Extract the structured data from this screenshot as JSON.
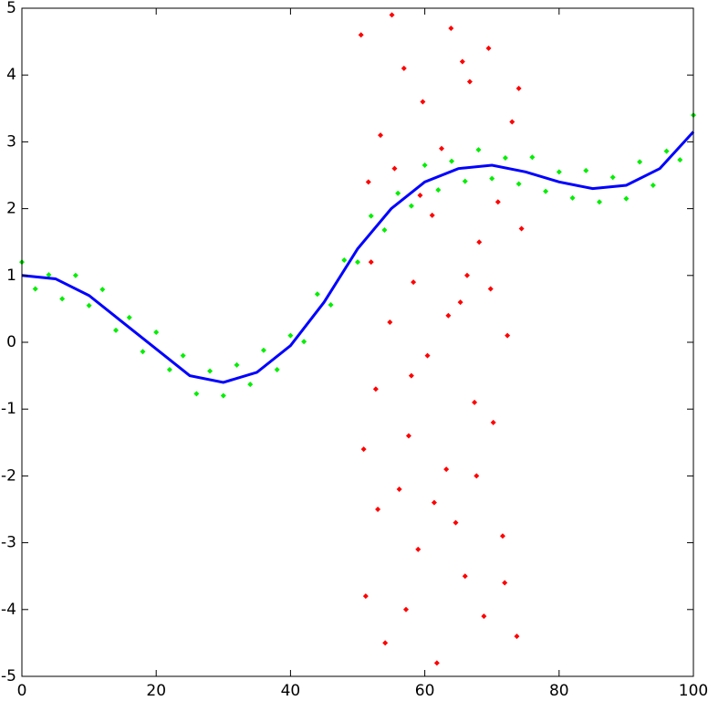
{
  "chart_data": {
    "type": "scatter",
    "xlim": [
      0,
      100
    ],
    "ylim": [
      -5,
      5
    ],
    "xticks": [
      0,
      20,
      40,
      60,
      80,
      100
    ],
    "yticks": [
      -5,
      -4,
      -3,
      -2,
      -1,
      0,
      1,
      2,
      3,
      4,
      5
    ],
    "series": [
      {
        "color": "#00ee00",
        "mode": "markers",
        "x": [
          0,
          2,
          4,
          6,
          8,
          10,
          12,
          14,
          16,
          18,
          20,
          22,
          24,
          26,
          28,
          30,
          32,
          34,
          36,
          38,
          40,
          42,
          44,
          46,
          48,
          50,
          52,
          54,
          56,
          58,
          60,
          62,
          64,
          66,
          68,
          70,
          72,
          74,
          76,
          78,
          80,
          82,
          84,
          86,
          88,
          90,
          92,
          94,
          96,
          98,
          100
        ],
        "values": [
          1.2,
          0.8,
          1.01,
          0.65,
          1.0,
          0.55,
          0.79,
          0.18,
          0.37,
          -0.14,
          0.15,
          -0.41,
          -0.2,
          -0.77,
          -0.43,
          -0.8,
          -0.34,
          -0.63,
          -0.12,
          -0.41,
          0.1,
          0.01,
          0.72,
          0.56,
          1.23,
          1.2,
          1.89,
          1.68,
          2.23,
          2.04,
          2.65,
          2.28,
          2.71,
          2.41,
          2.88,
          2.45,
          2.76,
          2.37,
          2.77,
          2.26,
          2.55,
          2.16,
          2.57,
          2.1,
          2.47,
          2.15,
          2.7,
          2.35,
          2.86,
          2.73,
          3.4
        ]
      },
      {
        "color": "#ff0000",
        "mode": "markers",
        "x": [
          50.5,
          51.2,
          52.0,
          52.7,
          53.4,
          54.1,
          54.8,
          55.5,
          56.2,
          56.9,
          57.6,
          58.3,
          59.0,
          59.7,
          60.4,
          61.1,
          61.8,
          62.5,
          63.2,
          63.9,
          64.6,
          65.3,
          66.0,
          66.7,
          67.4,
          68.1,
          68.8,
          69.5,
          70.2,
          70.9,
          71.6,
          72.3,
          73.0,
          73.7,
          74.4,
          50.9,
          53.0,
          55.1,
          57.2,
          59.3,
          61.4,
          63.5,
          65.6,
          67.7,
          69.8,
          71.9,
          74.0,
          51.6,
          58.0,
          66.3
        ],
        "values": [
          4.6,
          -3.8,
          1.2,
          -0.7,
          3.1,
          -4.5,
          0.3,
          2.6,
          -2.2,
          4.1,
          -1.4,
          0.9,
          -3.1,
          3.6,
          -0.2,
          1.9,
          -4.8,
          2.9,
          -1.9,
          4.7,
          -2.7,
          0.6,
          -3.5,
          3.9,
          -0.9,
          1.5,
          -4.1,
          4.4,
          -1.2,
          2.1,
          -2.9,
          0.1,
          3.3,
          -4.4,
          1.7,
          -1.6,
          -2.5,
          4.9,
          -4.0,
          2.2,
          -2.4,
          0.4,
          4.2,
          -2.0,
          0.8,
          -3.6,
          3.8,
          2.4,
          -0.5,
          1.0
        ]
      },
      {
        "color": "#0000ff",
        "mode": "line",
        "x": [
          0,
          5,
          10,
          15,
          20,
          25,
          30,
          35,
          40,
          45,
          50,
          55,
          60,
          65,
          70,
          75,
          80,
          85,
          90,
          95,
          100
        ],
        "values": [
          1.0,
          0.95,
          0.7,
          0.3,
          -0.1,
          -0.5,
          -0.6,
          -0.45,
          -0.05,
          0.6,
          1.4,
          2.0,
          2.4,
          2.6,
          2.65,
          2.55,
          2.4,
          2.3,
          2.35,
          2.6,
          3.15
        ]
      }
    ]
  }
}
